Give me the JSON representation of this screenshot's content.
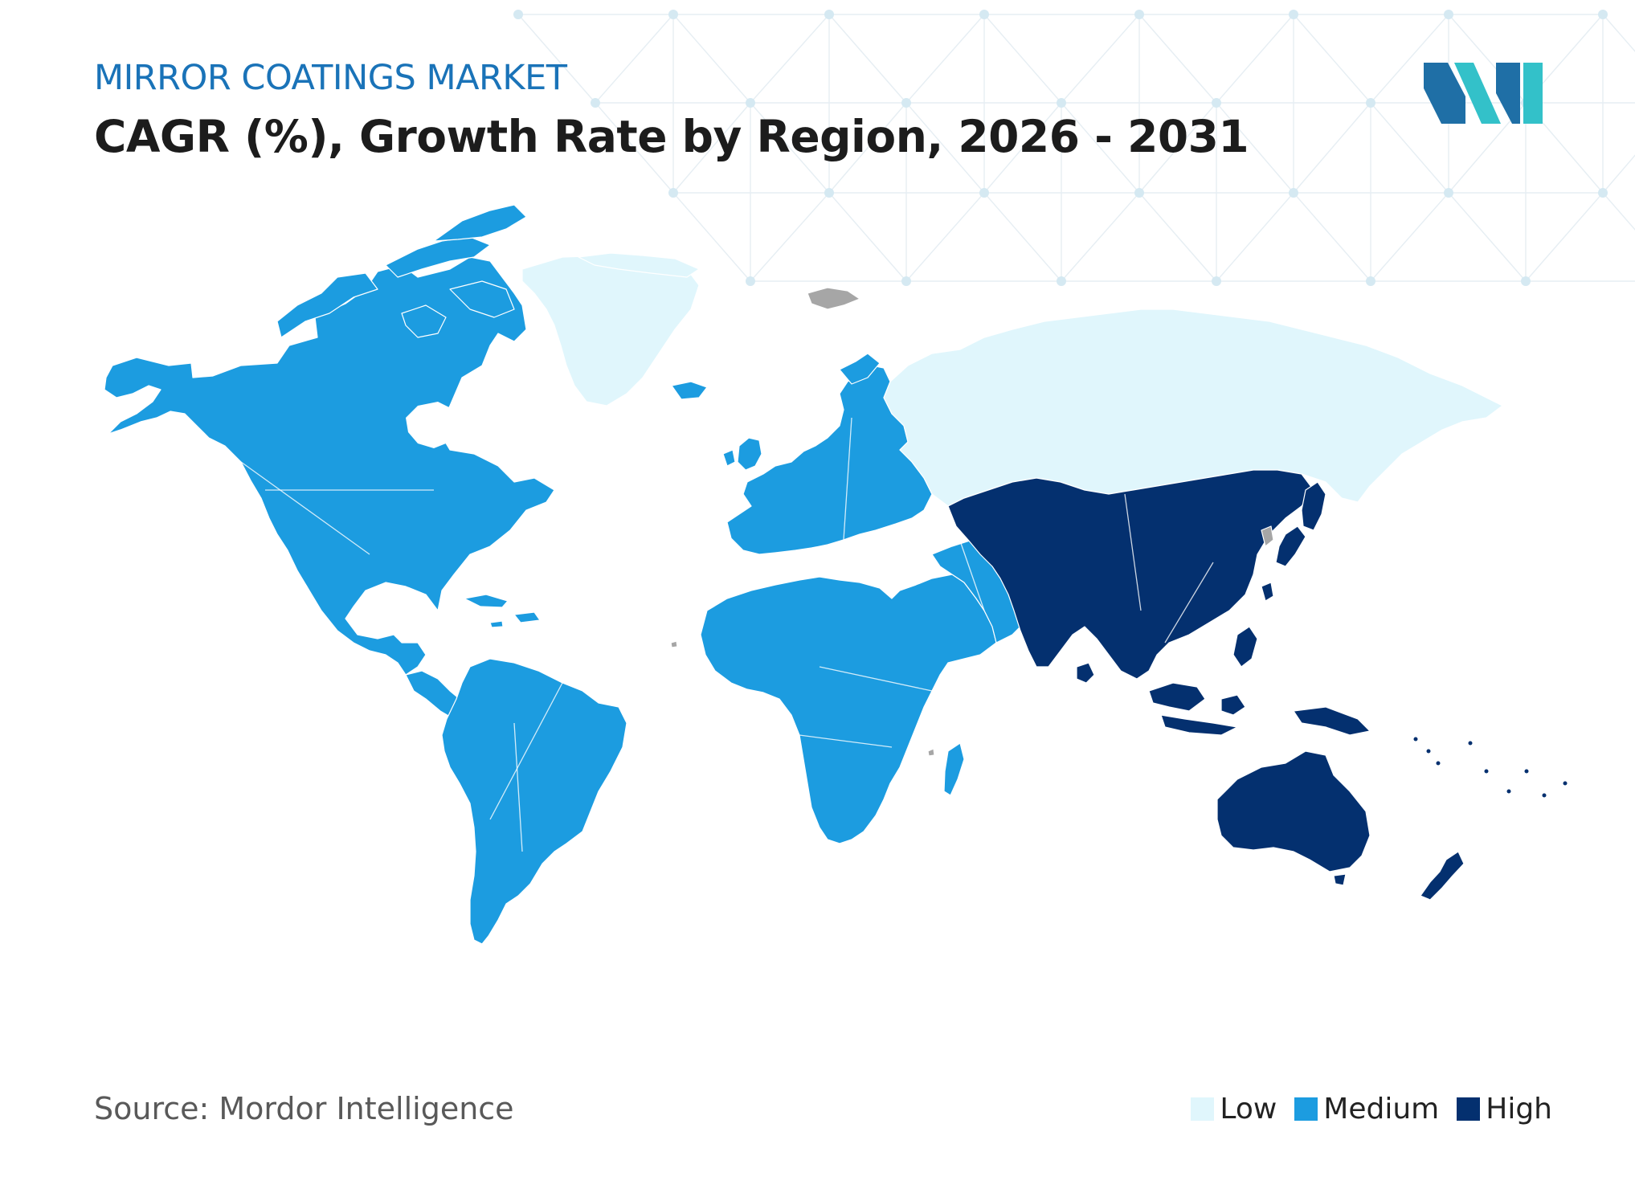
{
  "header": {
    "subtitle": "MIRROR COATINGS MARKET",
    "title": "CAGR (%), Growth Rate by Region, 2026 - 2031"
  },
  "footer": {
    "source": "Source: Mordor Intelligence"
  },
  "legend": [
    {
      "label": "Low",
      "color": "#e0f6fc"
    },
    {
      "label": "Medium",
      "color": "#1c9ce0"
    },
    {
      "label": "High",
      "color": "#04306f"
    }
  ],
  "colors": {
    "accent": "#1a73b8",
    "no_data": "#a6a6a6",
    "logo_dark": "#1f6fa6",
    "logo_teal": "#33c1c9"
  },
  "regions": [
    {
      "name": "North America",
      "level": "Medium"
    },
    {
      "name": "South America",
      "level": "Medium"
    },
    {
      "name": "Europe",
      "level": "Medium"
    },
    {
      "name": "Middle East and Africa",
      "level": "Medium"
    },
    {
      "name": "Asia Pacific",
      "level": "High"
    },
    {
      "name": "Russia",
      "level": "Low"
    },
    {
      "name": "Greenland",
      "level": "Low"
    }
  ],
  "logo": {
    "icon": "mordor-intelligence-logo"
  }
}
